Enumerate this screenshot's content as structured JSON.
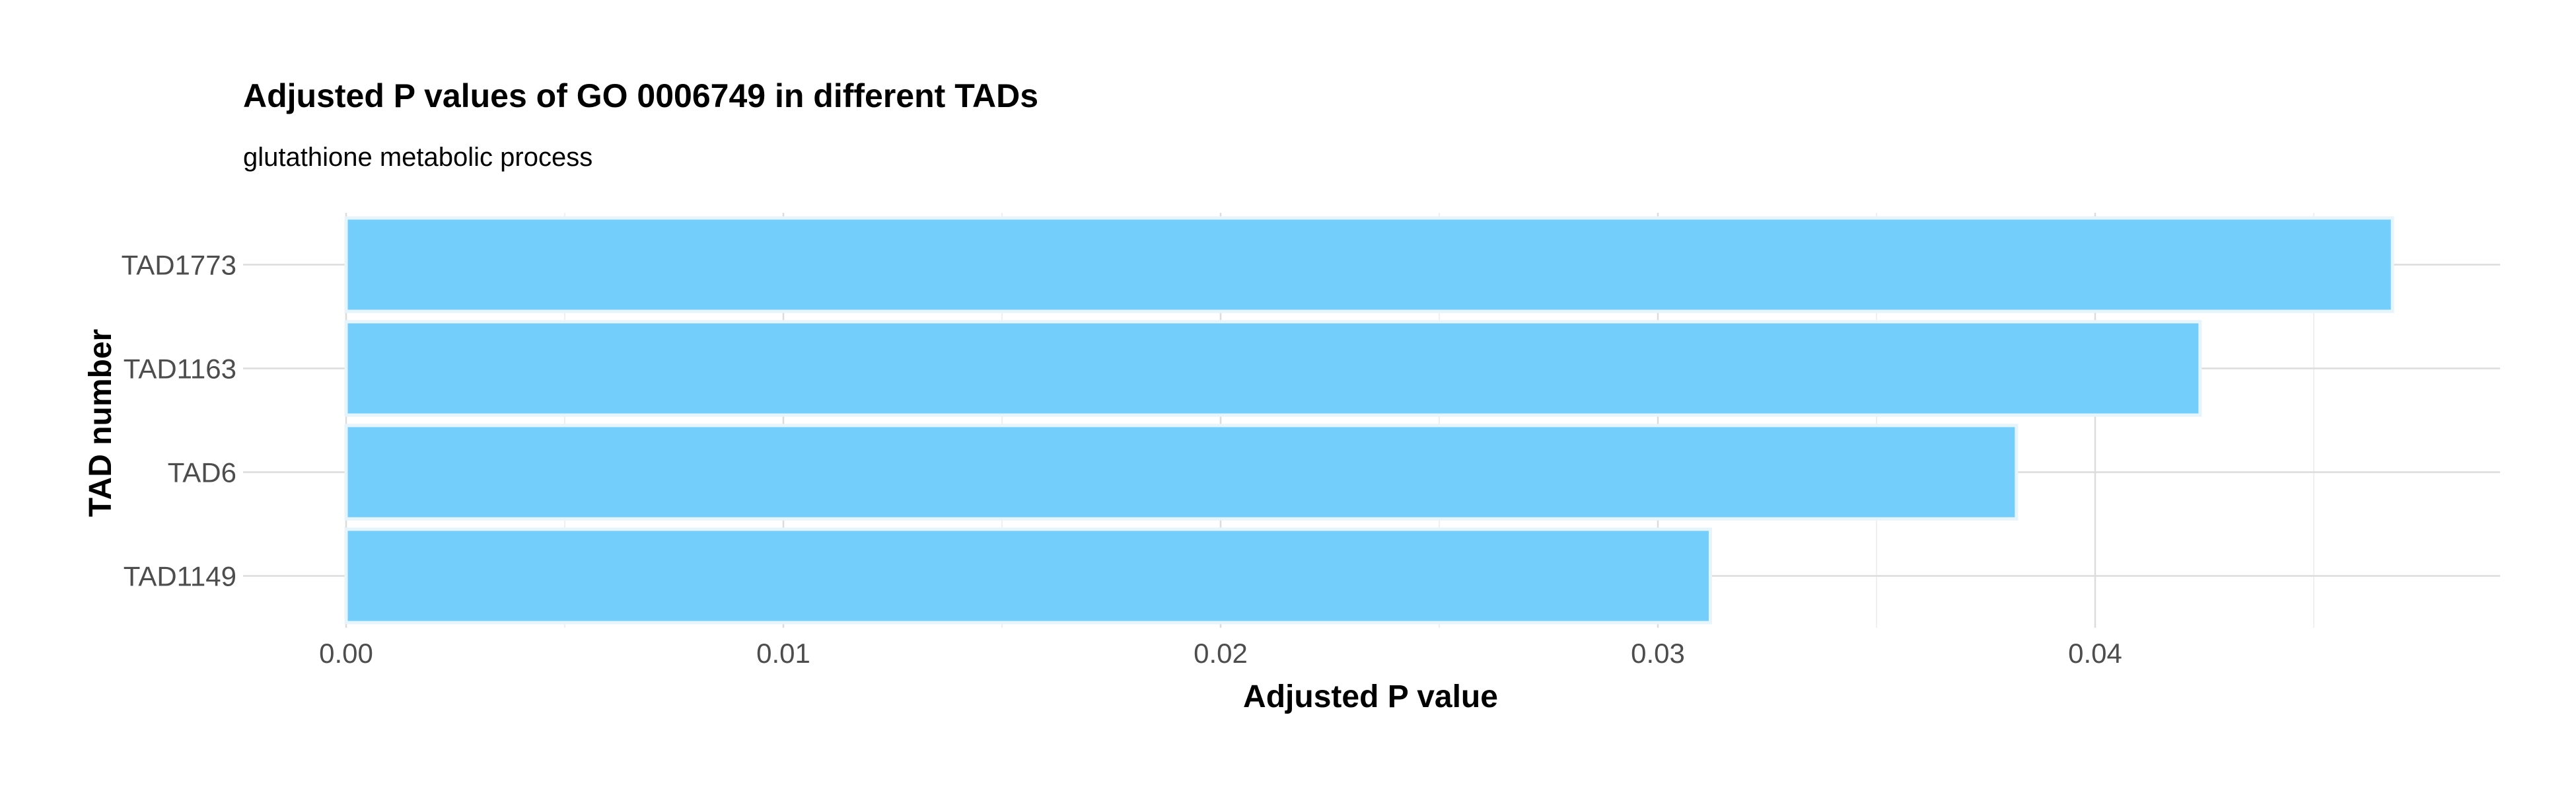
{
  "chart_data": {
    "type": "bar",
    "orientation": "horizontal",
    "title": "Adjusted P values of GO 0006749 in different TADs",
    "subtitle": "glutathione metabolic process",
    "xlabel": "Adjusted P value",
    "ylabel": "TAD number",
    "categories": [
      "TAD1773",
      "TAD1163",
      "TAD6",
      "TAD1149"
    ],
    "values": [
      0.0468,
      0.0424,
      0.0382,
      0.0312
    ],
    "xlim": [
      0,
      0.0492
    ],
    "xticks": [
      0.0,
      0.01,
      0.02,
      0.03,
      0.04
    ],
    "xtick_labels": [
      "0.00",
      "0.01",
      "0.02",
      "0.03",
      "0.04"
    ],
    "bar_color": "#74cefc",
    "grid": true
  }
}
